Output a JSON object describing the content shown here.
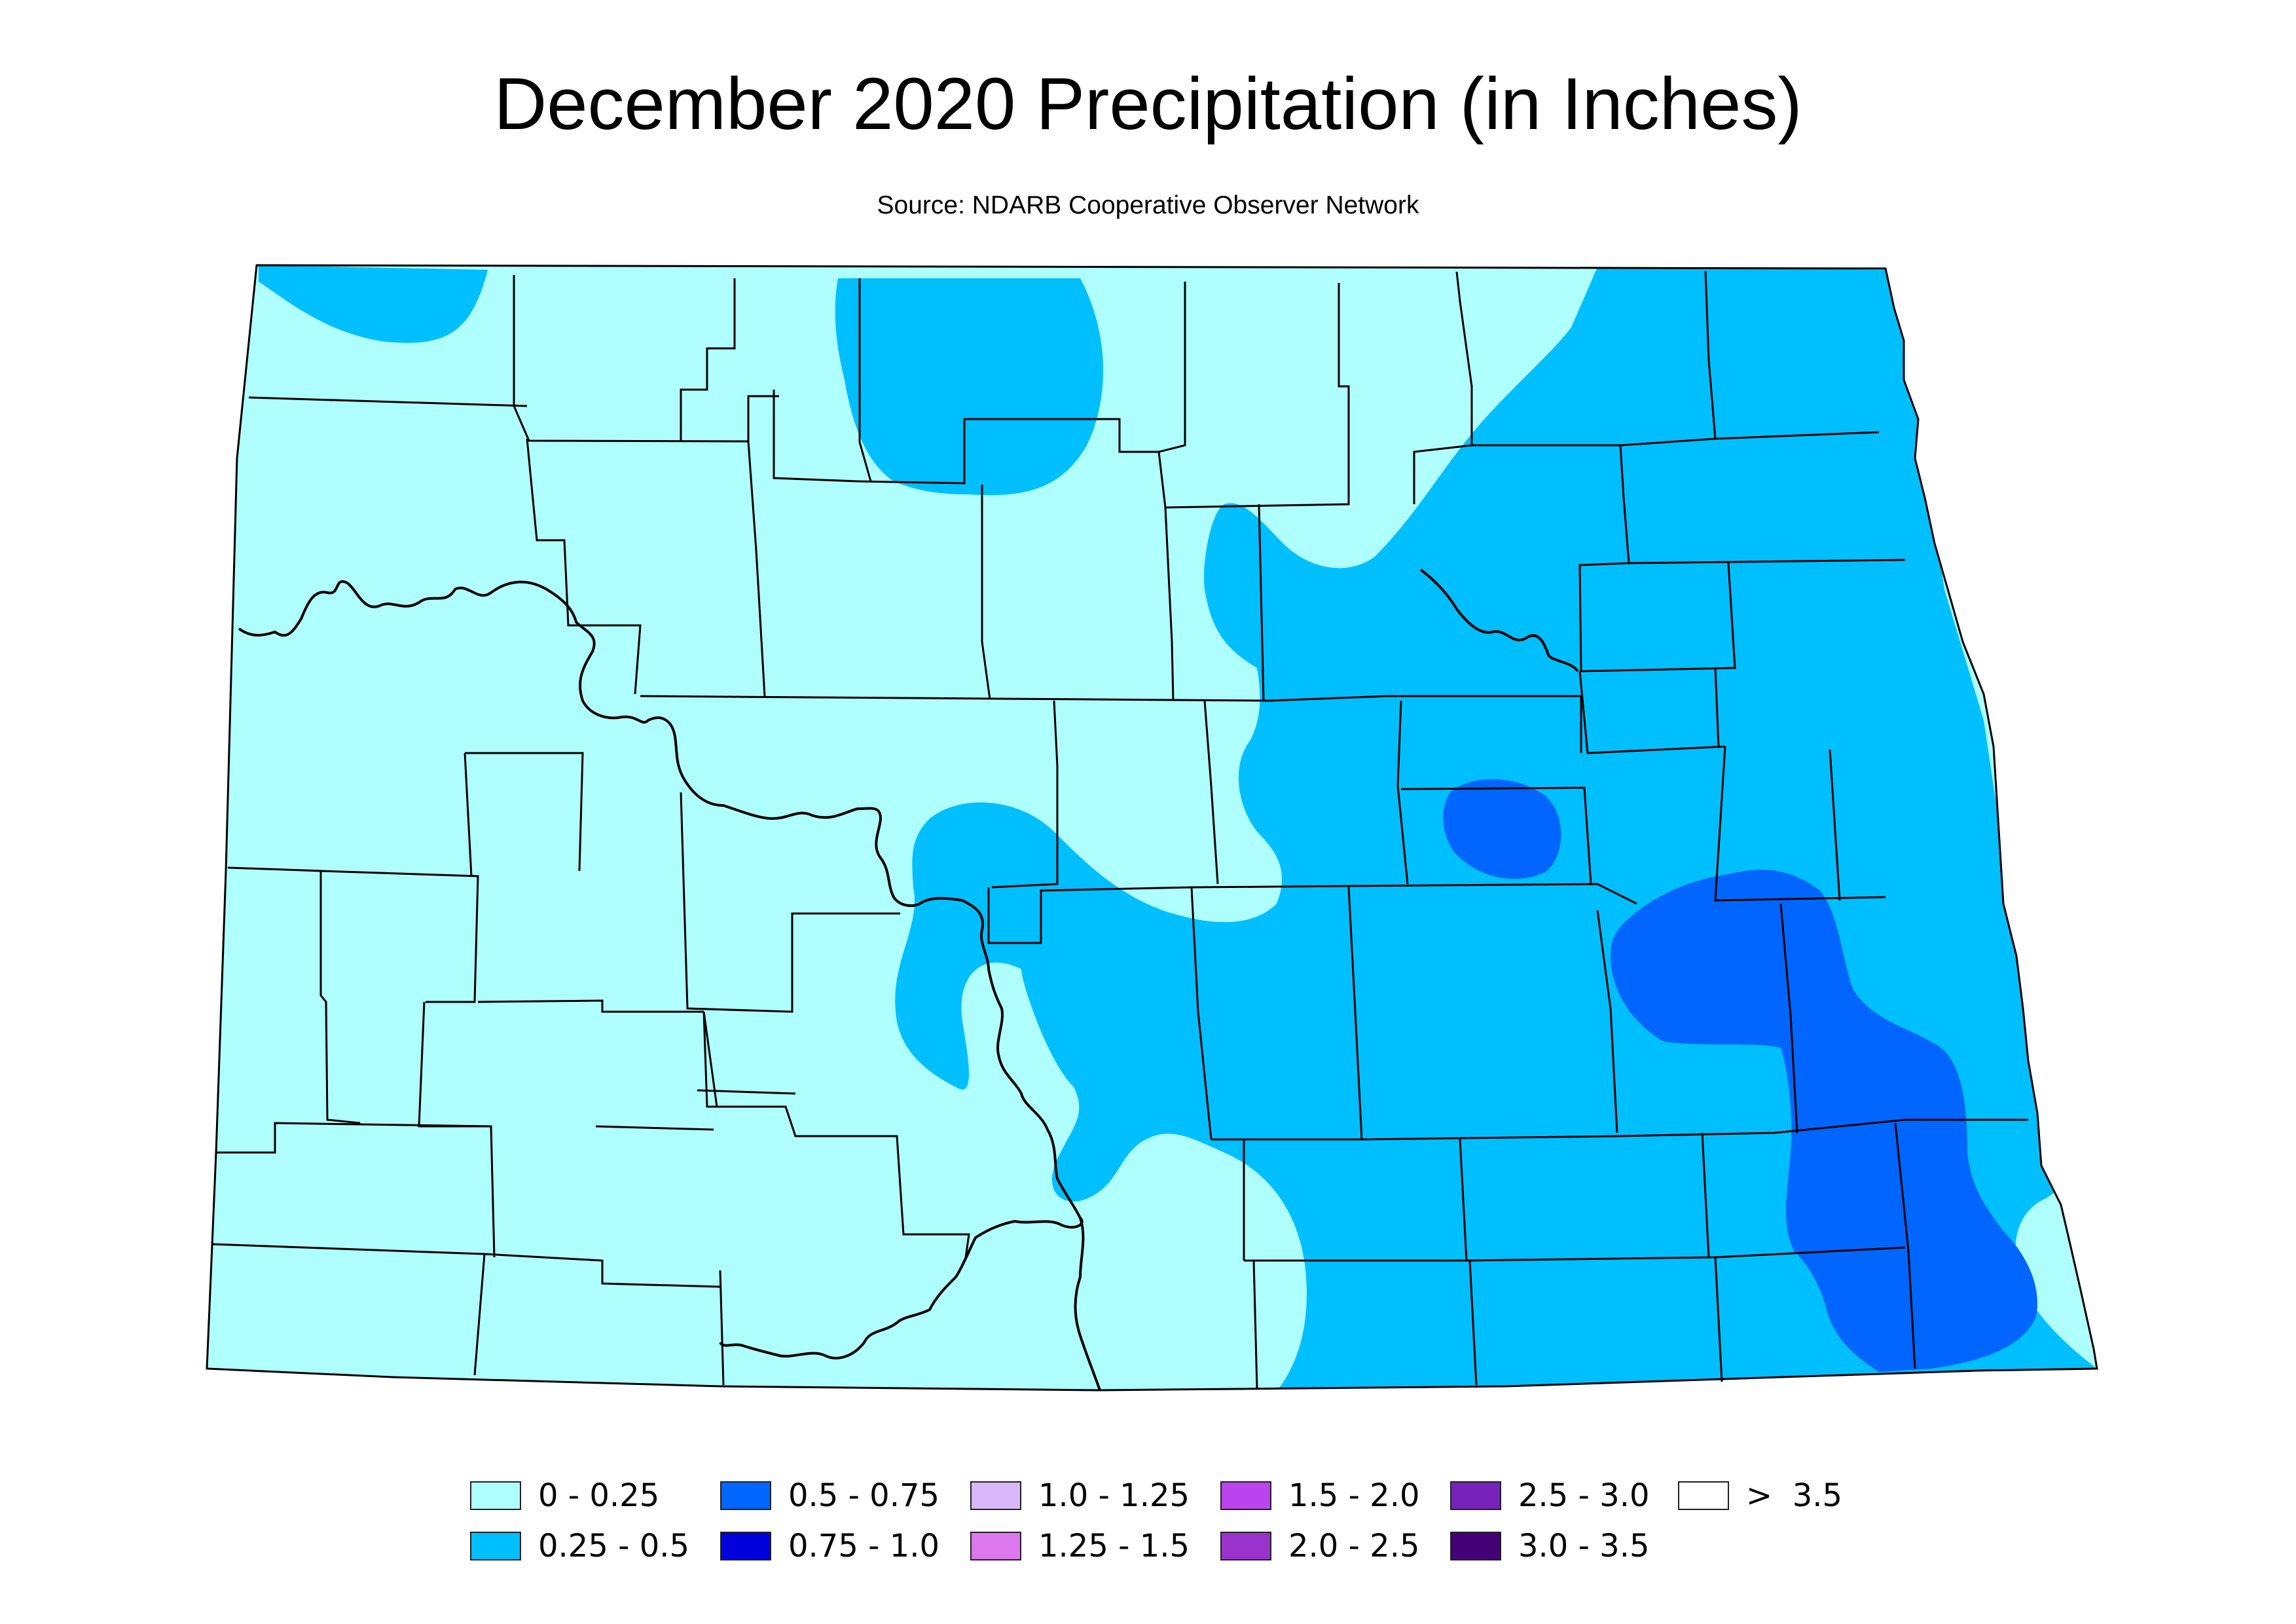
{
  "title": "December 2020 Precipitation (in Inches)",
  "subtitle": "Source: NDARB Cooperative Observer Network",
  "map": {
    "region": "North Dakota",
    "layers": [
      "county-boundaries",
      "river",
      "precipitation-contours"
    ],
    "range_colors": {
      "0_to_0.25": "#b0ffff",
      "0.25_to_0.5": "#00bfff",
      "0.5_to_0.75": "#0066ff"
    }
  },
  "legend": [
    {
      "label": "0 - 0.25",
      "color": "#b0ffff"
    },
    {
      "label": "0.25 - 0.5",
      "color": "#00bfff"
    },
    {
      "label": "0.5 - 0.75",
      "color": "#0066ff"
    },
    {
      "label": "0.75 - 1.0",
      "color": "#0000dd"
    },
    {
      "label": "1.0 - 1.25",
      "color": "#d8b8f8"
    },
    {
      "label": "1.25 - 1.5",
      "color": "#dd77ee"
    },
    {
      "label": "1.5 - 2.0",
      "color": "#bb44ee"
    },
    {
      "label": "2.0 - 2.5",
      "color": "#9933cc"
    },
    {
      "label": "2.5 - 3.0",
      "color": "#7722bb"
    },
    {
      "label": "3.0 - 3.5",
      "color": "#440077"
    },
    {
      "label": ">  3.5",
      "color": "#ffffff"
    }
  ]
}
